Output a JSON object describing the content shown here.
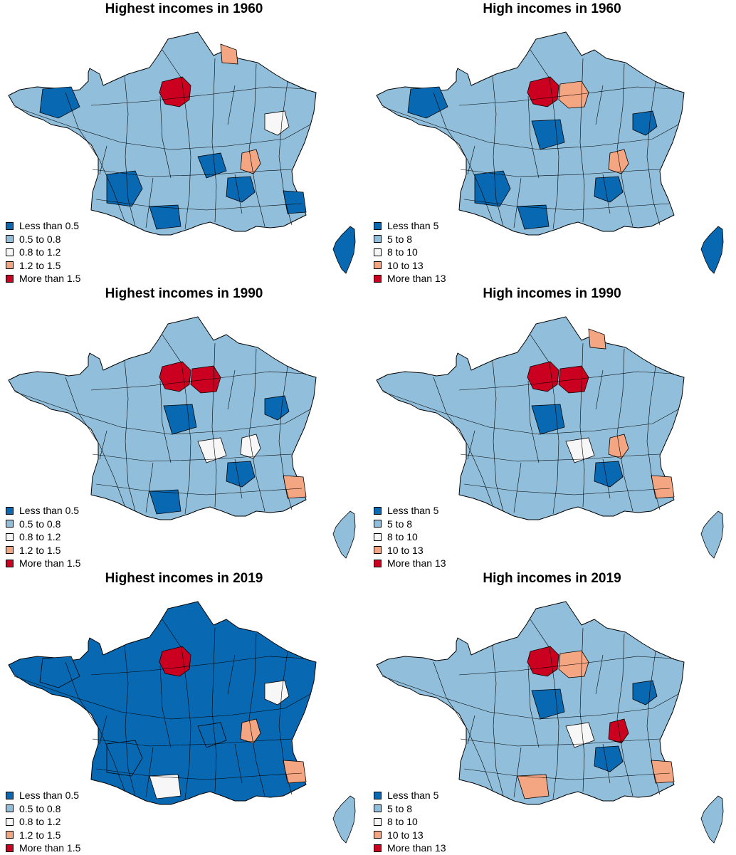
{
  "colors": [
    "#0868b1",
    "#91bfdb",
    "#f7f7f7",
    "#f4a582",
    "#cb0020"
  ],
  "legend_sets": {
    "highest": [
      "Less than 0.5",
      "0.5 to 0.8",
      "0.8 to 1.2",
      "1.2 to 1.5",
      "More than 1.5"
    ],
    "high": [
      "Less than 5",
      "5 to 8",
      "8 to 10",
      "10 to 13",
      "More than 13"
    ]
  },
  "panels": [
    {
      "id": "highest-1960",
      "title": "Highest incomes in 1960",
      "legend": "highest",
      "mainland_class": 1,
      "corsica_class": 0
    },
    {
      "id": "high-1960",
      "title": "High incomes in 1960",
      "legend": "high",
      "mainland_class": 1,
      "corsica_class": 0
    },
    {
      "id": "highest-1990",
      "title": "Highest incomes in 1990",
      "legend": "highest",
      "mainland_class": 1,
      "corsica_class": 1
    },
    {
      "id": "high-1990",
      "title": "High incomes in 1990",
      "legend": "high",
      "mainland_class": 1,
      "corsica_class": 1
    },
    {
      "id": "highest-2019",
      "title": "Highest incomes in 2019",
      "legend": "highest",
      "mainland_class": 0,
      "corsica_class": 1
    },
    {
      "id": "high-2019",
      "title": "High incomes in 2019",
      "legend": "high",
      "mainland_class": 1,
      "corsica_class": 1
    }
  ]
}
